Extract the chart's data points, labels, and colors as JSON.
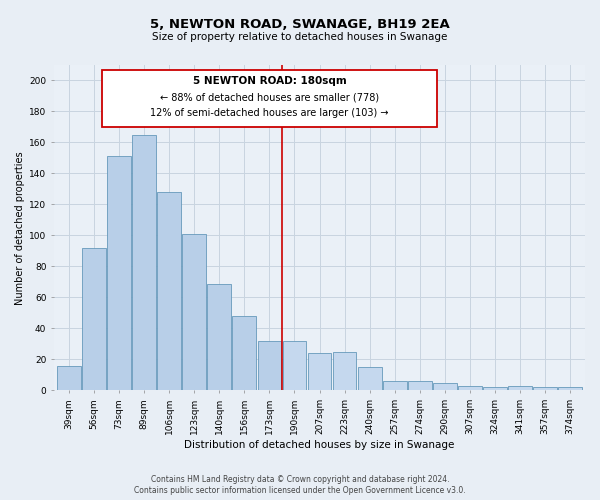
{
  "title": "5, NEWTON ROAD, SWANAGE, BH19 2EA",
  "subtitle": "Size of property relative to detached houses in Swanage",
  "xlabel": "Distribution of detached houses by size in Swanage",
  "ylabel": "Number of detached properties",
  "bar_labels": [
    "39sqm",
    "56sqm",
    "73sqm",
    "89sqm",
    "106sqm",
    "123sqm",
    "140sqm",
    "156sqm",
    "173sqm",
    "190sqm",
    "207sqm",
    "223sqm",
    "240sqm",
    "257sqm",
    "274sqm",
    "290sqm",
    "307sqm",
    "324sqm",
    "341sqm",
    "357sqm",
    "374sqm"
  ],
  "bar_values": [
    16,
    92,
    151,
    165,
    128,
    101,
    69,
    48,
    32,
    32,
    24,
    25,
    15,
    6,
    6,
    5,
    3,
    2,
    3,
    2,
    2
  ],
  "bar_color_left": "#b8cfe8",
  "bar_color_right": "#c5d8ee",
  "property_line_x": 8.5,
  "property_line_label": "5 NEWTON ROAD: 180sqm",
  "annotation_line1": "← 88% of detached houses are smaller (778)",
  "annotation_line2": "12% of semi-detached houses are larger (103) →",
  "annotation_box_color": "#cc0000",
  "annotation_fill": "#ffffff",
  "ylim": [
    0,
    210
  ],
  "yticks": [
    0,
    20,
    40,
    60,
    80,
    100,
    120,
    140,
    160,
    180,
    200
  ],
  "footer1": "Contains HM Land Registry data © Crown copyright and database right 2024.",
  "footer2": "Contains public sector information licensed under the Open Government Licence v3.0.",
  "bg_color": "#e8eef5",
  "plot_bg_color": "#eaf0f7",
  "grid_color": "#c8d4e0",
  "title_fontsize": 9.5,
  "subtitle_fontsize": 7.5,
  "xlabel_fontsize": 7.5,
  "ylabel_fontsize": 7,
  "tick_fontsize": 6.5,
  "annot_title_fontsize": 7.5,
  "annot_text_fontsize": 7,
  "footer_fontsize": 5.5
}
